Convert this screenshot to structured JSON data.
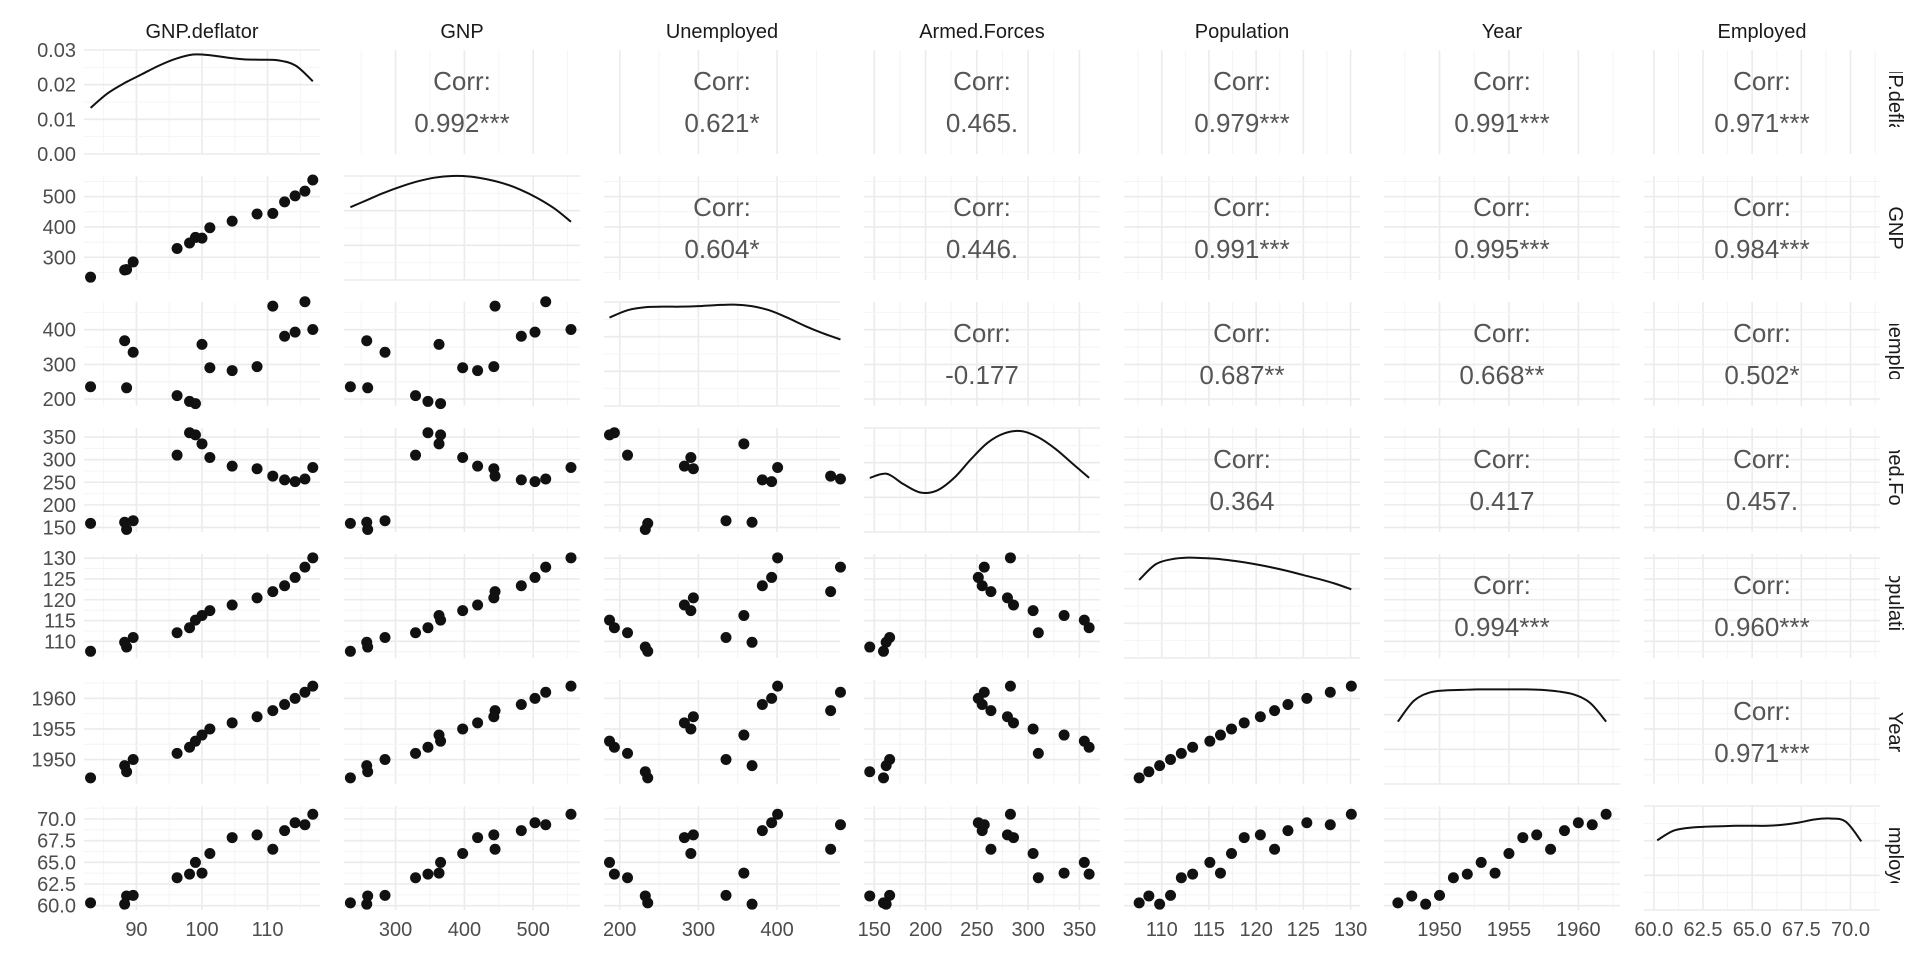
{
  "chart_data": {
    "type": "scatter-matrix",
    "title": "",
    "variables": [
      "GNP.deflator",
      "GNP",
      "Unemployed",
      "Armed.Forces",
      "Population",
      "Year",
      "Employed"
    ],
    "row_strip_labels": [
      ":NP.deflatc",
      "GNP",
      "Jnemploye",
      "med.Forc",
      "Population",
      "Year",
      "Employed"
    ],
    "corr_prefix": "Corr:",
    "axis_ranges": {
      "GNP.deflator": [
        82,
        118
      ],
      "GNP": [
        225,
        568
      ],
      "Unemployed": [
        180,
        480
      ],
      "Armed.Forces": [
        140,
        370
      ],
      "Population": [
        106,
        131
      ],
      "Year": [
        1946,
        1963
      ],
      "Employed": [
        59.5,
        71.5
      ]
    },
    "x_ticks": [
      [
        90,
        100,
        110
      ],
      [
        300,
        400,
        500
      ],
      [
        200,
        300,
        400
      ],
      [
        150,
        200,
        250,
        300,
        350
      ],
      [
        110,
        115,
        120,
        125,
        130
      ],
      [
        1950,
        1955,
        1960
      ],
      [
        60.0,
        62.5,
        65.0,
        67.5,
        70.0
      ]
    ],
    "x_tick_labels": [
      [
        "90",
        "100",
        "110"
      ],
      [
        "300",
        "400",
        "500"
      ],
      [
        "200",
        "300",
        "400"
      ],
      [
        "150",
        "200",
        "250",
        "300",
        "350"
      ],
      [
        "110",
        "115",
        "120",
        "125",
        "130"
      ],
      [
        "1950",
        "1955",
        "1960"
      ],
      [
        "60.0",
        "62.5",
        "65.0",
        "67.5",
        "70.0"
      ]
    ],
    "y_ticks": [
      [
        0.0,
        0.01,
        0.02,
        0.03
      ],
      [
        300,
        400,
        500
      ],
      [
        200,
        300,
        400
      ],
      [
        150,
        200,
        250,
        300,
        350
      ],
      [
        110,
        115,
        120,
        125,
        130
      ],
      [
        1950,
        1955,
        1960
      ],
      [
        60.0,
        62.5,
        65.0,
        67.5,
        70.0
      ]
    ],
    "y_tick_labels": [
      [
        "0.00",
        "0.01",
        "0.02",
        "0.03"
      ],
      [
        "300",
        "400",
        "500"
      ],
      [
        "200",
        "300",
        "400"
      ],
      [
        "150",
        "200",
        "250",
        "300",
        "350"
      ],
      [
        "110",
        "115",
        "120",
        "125",
        "130"
      ],
      [
        "1950",
        "1955",
        "1960"
      ],
      [
        "60.0",
        "62.5",
        "65.0",
        "67.5",
        "70.0"
      ]
    ],
    "density_ylim": [
      0,
      0.03
    ],
    "density_y": [
      [
        0.0133,
        0.0175,
        0.0205,
        0.023,
        0.0255,
        0.0275,
        0.0287,
        0.0285,
        0.0278,
        0.0273,
        0.0272,
        0.027,
        0.0255,
        0.021
      ],
      [
        0.7,
        0.77,
        0.84,
        0.9,
        0.95,
        0.985,
        1.0,
        0.995,
        0.97,
        0.93,
        0.87,
        0.79,
        0.69,
        0.56
      ],
      [
        0.85,
        0.92,
        0.95,
        0.955,
        0.955,
        0.96,
        0.97,
        0.975,
        0.96,
        0.92,
        0.85,
        0.77,
        0.7,
        0.64
      ],
      [
        0.52,
        0.56,
        0.46,
        0.38,
        0.4,
        0.52,
        0.7,
        0.86,
        0.95,
        0.97,
        0.91,
        0.8,
        0.66,
        0.52
      ],
      [
        0.75,
        0.9,
        0.95,
        0.965,
        0.96,
        0.95,
        0.93,
        0.905,
        0.875,
        0.84,
        0.8,
        0.76,
        0.715,
        0.66
      ],
      [
        0.6,
        0.8,
        0.88,
        0.9,
        0.905,
        0.91,
        0.91,
        0.91,
        0.91,
        0.905,
        0.89,
        0.86,
        0.78,
        0.6
      ],
      [
        0.67,
        0.76,
        0.79,
        0.8,
        0.805,
        0.81,
        0.81,
        0.81,
        0.82,
        0.84,
        0.87,
        0.88,
        0.85,
        0.66
      ]
    ],
    "correlations": [
      {
        "row": 0,
        "col": 1,
        "value": "0.992***"
      },
      {
        "row": 0,
        "col": 2,
        "value": "0.621*"
      },
      {
        "row": 0,
        "col": 3,
        "value": "0.465."
      },
      {
        "row": 0,
        "col": 4,
        "value": "0.979***"
      },
      {
        "row": 0,
        "col": 5,
        "value": "0.991***"
      },
      {
        "row": 0,
        "col": 6,
        "value": "0.971***"
      },
      {
        "row": 1,
        "col": 2,
        "value": "0.604*"
      },
      {
        "row": 1,
        "col": 3,
        "value": "0.446."
      },
      {
        "row": 1,
        "col": 4,
        "value": "0.991***"
      },
      {
        "row": 1,
        "col": 5,
        "value": "0.995***"
      },
      {
        "row": 1,
        "col": 6,
        "value": "0.984***"
      },
      {
        "row": 2,
        "col": 3,
        "value": "-0.177"
      },
      {
        "row": 2,
        "col": 4,
        "value": "0.687**"
      },
      {
        "row": 2,
        "col": 5,
        "value": "0.668**"
      },
      {
        "row": 2,
        "col": 6,
        "value": "0.502*"
      },
      {
        "row": 3,
        "col": 4,
        "value": "0.364"
      },
      {
        "row": 3,
        "col": 5,
        "value": "0.417"
      },
      {
        "row": 3,
        "col": 6,
        "value": "0.457."
      },
      {
        "row": 4,
        "col": 5,
        "value": "0.994***"
      },
      {
        "row": 4,
        "col": 6,
        "value": "0.960***"
      },
      {
        "row": 5,
        "col": 6,
        "value": "0.971***"
      }
    ],
    "observations": {
      "GNP.deflator": [
        83.0,
        88.5,
        88.2,
        89.5,
        96.2,
        98.1,
        99.0,
        100.0,
        101.2,
        104.6,
        108.4,
        110.8,
        112.6,
        114.2,
        115.7,
        116.9
      ],
      "GNP": [
        234.289,
        259.426,
        258.054,
        284.599,
        328.975,
        346.999,
        365.385,
        363.112,
        397.469,
        419.18,
        442.769,
        444.546,
        482.704,
        502.601,
        518.173,
        554.894
      ],
      "Unemployed": [
        235.6,
        232.5,
        368.2,
        335.1,
        209.9,
        193.2,
        187.0,
        357.8,
        290.4,
        282.2,
        293.6,
        468.1,
        381.3,
        393.1,
        480.6,
        400.7
      ],
      "Armed.Forces": [
        159.0,
        145.6,
        161.6,
        165.0,
        309.9,
        359.4,
        354.7,
        335.0,
        304.8,
        285.7,
        279.8,
        263.7,
        255.2,
        251.4,
        257.2,
        282.7
      ],
      "Population": [
        107.608,
        108.632,
        109.773,
        110.929,
        112.075,
        113.27,
        115.094,
        116.219,
        117.388,
        118.734,
        120.445,
        121.95,
        123.366,
        125.368,
        127.852,
        130.081
      ],
      "Year": [
        1947,
        1948,
        1949,
        1950,
        1951,
        1952,
        1953,
        1954,
        1955,
        1956,
        1957,
        1958,
        1959,
        1960,
        1961,
        1962
      ],
      "Employed": [
        60.323,
        61.122,
        60.171,
        61.187,
        63.221,
        63.639,
        64.989,
        63.761,
        66.019,
        67.857,
        68.169,
        66.513,
        68.655,
        69.564,
        69.331,
        70.551
      ]
    },
    "colors": {
      "background": "#ffffff",
      "grid_major": "#ebebeb",
      "grid_minor": "#f4f4f4",
      "points": "#111111",
      "density_line": "#111111",
      "corr_text": "#555555",
      "axis_text": "#4d4d4d",
      "strip_text": "#1a1a1a"
    }
  }
}
